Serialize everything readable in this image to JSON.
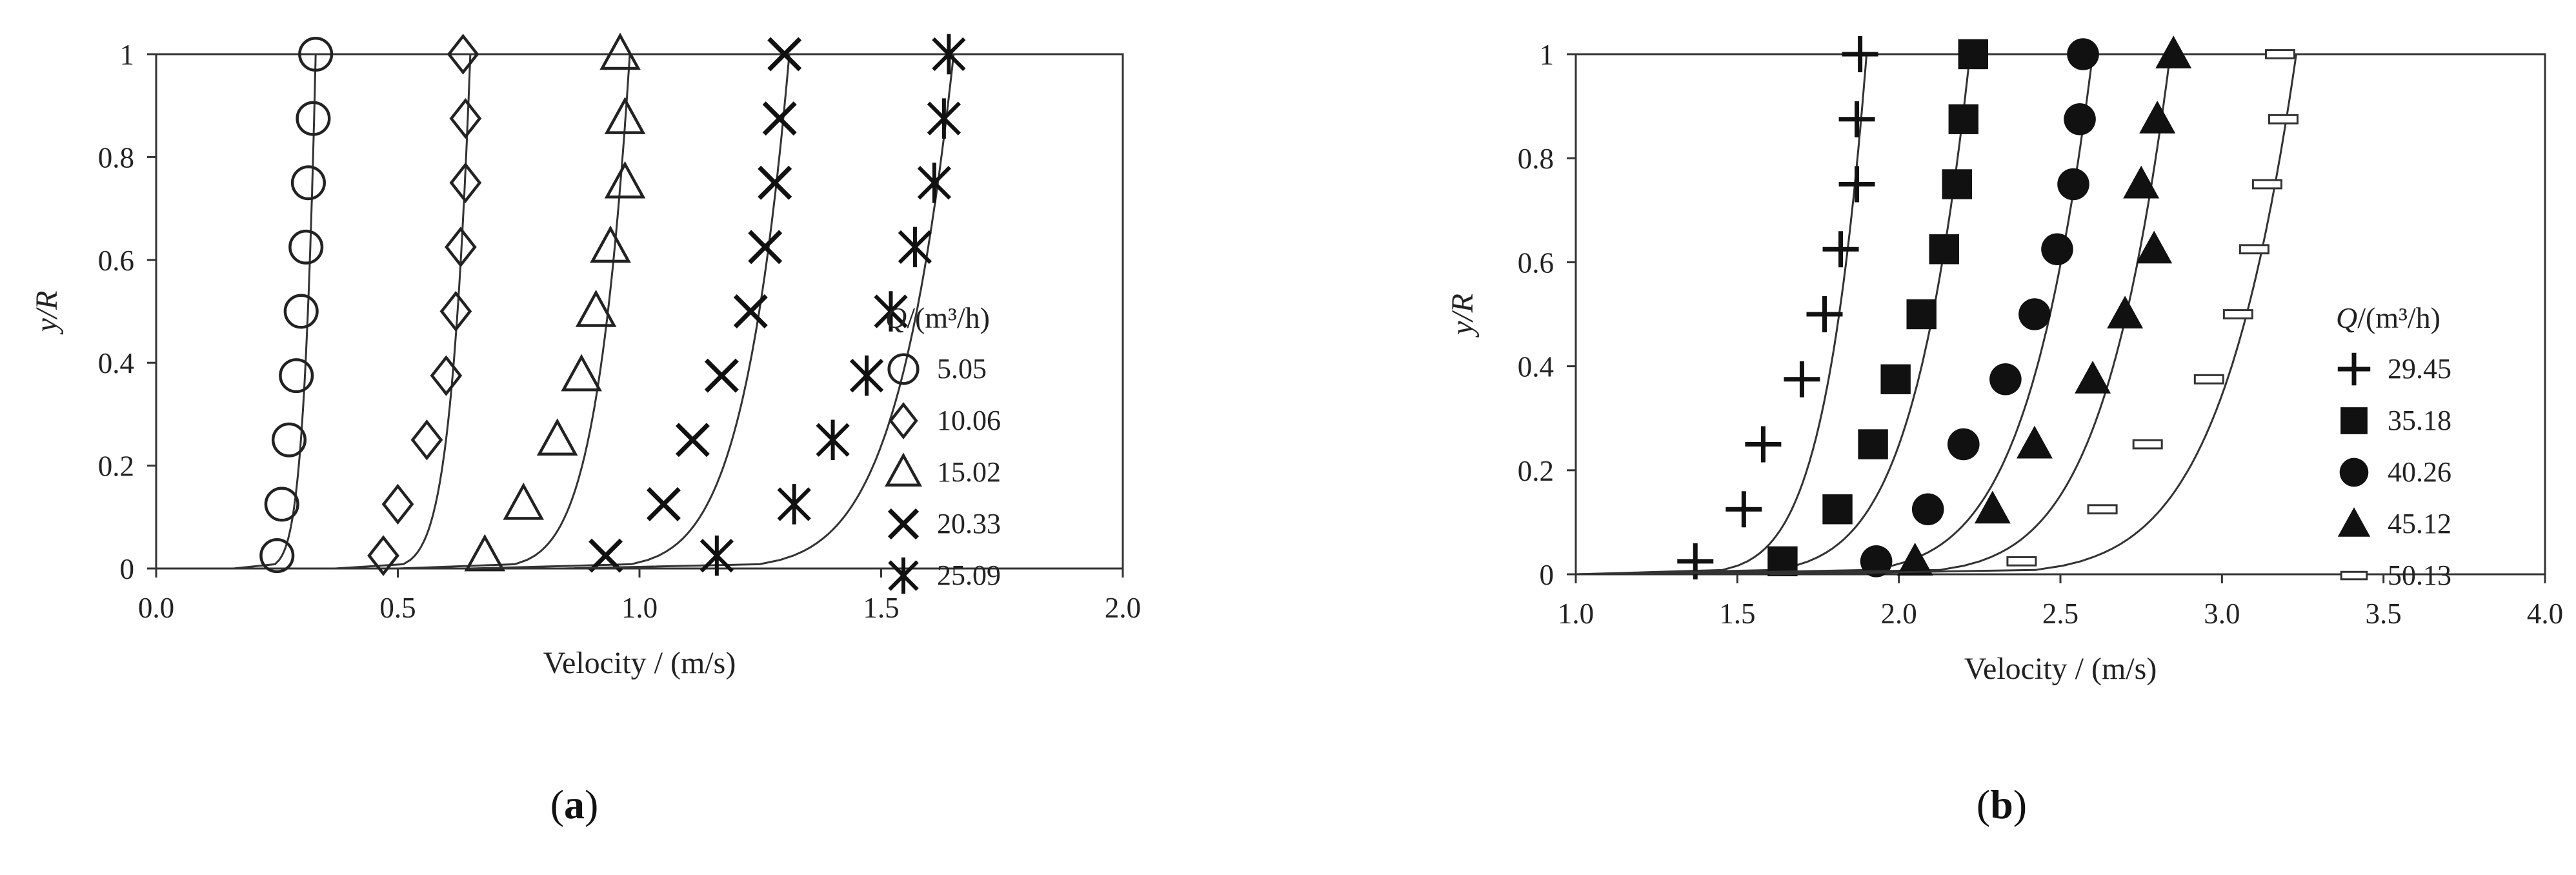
{
  "chart_data": [
    {
      "panel": "(a)",
      "type": "scatter",
      "xlabel": "Velocity / (m/s)",
      "ylabel_italic": "y/R",
      "xlim": [
        0.0,
        2.0
      ],
      "ylim": [
        0,
        1
      ],
      "x_ticks": [
        "0.0",
        "0.5",
        "1.0",
        "1.5",
        "2.0"
      ],
      "y_ticks": [
        "0",
        "0.2",
        "0.4",
        "0.6",
        "0.8",
        "1"
      ],
      "legend_title_italic": "Q",
      "legend_title_rest": "/(m³/h)",
      "legend_position": "right",
      "grid": false,
      "y_values": [
        0.025,
        0.125,
        0.25,
        0.375,
        0.5,
        0.625,
        0.75,
        0.875,
        1.0
      ],
      "series": [
        {
          "name": "5.05",
          "marker": "circle-open",
          "x": [
            0.25,
            0.26,
            0.275,
            0.29,
            0.3,
            0.31,
            0.315,
            0.325,
            0.33
          ],
          "curve": {
            "x0": 0.16,
            "x1": 0.33
          }
        },
        {
          "name": "10.06",
          "marker": "diamond-open",
          "x": [
            0.47,
            0.5,
            0.56,
            0.6,
            0.62,
            0.63,
            0.64,
            0.64,
            0.635
          ],
          "curve": {
            "x0": 0.37,
            "x1": 0.65
          }
        },
        {
          "name": "15.02",
          "marker": "triangle-open",
          "x": [
            0.68,
            0.76,
            0.83,
            0.88,
            0.91,
            0.94,
            0.97,
            0.97,
            0.96
          ],
          "curve": {
            "x0": 0.5,
            "x1": 0.98
          }
        },
        {
          "name": "20.33",
          "marker": "x",
          "x": [
            0.93,
            1.05,
            1.11,
            1.17,
            1.23,
            1.26,
            1.28,
            1.29,
            1.3
          ],
          "curve": {
            "x0": 0.65,
            "x1": 1.31
          }
        },
        {
          "name": "25.09",
          "marker": "asterisk",
          "x": [
            1.16,
            1.32,
            1.4,
            1.47,
            1.52,
            1.57,
            1.61,
            1.63,
            1.64
          ],
          "curve": {
            "x0": 0.84,
            "x1": 1.65
          }
        }
      ]
    },
    {
      "panel": "(b)",
      "type": "scatter",
      "xlabel": "Velocity / (m/s)",
      "ylabel_italic": "y/R",
      "xlim": [
        1.0,
        4.0
      ],
      "ylim": [
        0,
        1
      ],
      "x_ticks": [
        "1.0",
        "1.5",
        "2.0",
        "2.5",
        "3.0",
        "3.5",
        "4.0"
      ],
      "y_ticks": [
        "0",
        "0.2",
        "0.4",
        "0.6",
        "0.8",
        "1"
      ],
      "legend_title_italic": "Q",
      "legend_title_rest": "/(m³/h)",
      "legend_position": "right",
      "grid": false,
      "y_values": [
        0.025,
        0.125,
        0.25,
        0.375,
        0.5,
        0.625,
        0.75,
        0.875,
        1.0
      ],
      "series": [
        {
          "name": "29.45",
          "marker": "plus",
          "x": [
            1.37,
            1.52,
            1.58,
            1.7,
            1.77,
            1.82,
            1.87,
            1.87,
            1.88
          ],
          "curve": {
            "x0": 1.0,
            "x1": 1.9
          }
        },
        {
          "name": "35.18",
          "marker": "square-filled",
          "x": [
            1.64,
            1.81,
            1.92,
            1.99,
            2.07,
            2.14,
            2.18,
            2.2,
            2.23
          ],
          "curve": {
            "x0": 1.0,
            "x1": 2.22
          }
        },
        {
          "name": "40.26",
          "marker": "circle-filled",
          "x": [
            1.93,
            2.09,
            2.2,
            2.33,
            2.42,
            2.49,
            2.54,
            2.56,
            2.57
          ],
          "curve": {
            "x0": 1.2,
            "x1": 2.6
          }
        },
        {
          "name": "45.12",
          "marker": "triangle-filled",
          "x": [
            2.05,
            2.29,
            2.42,
            2.6,
            2.7,
            2.79,
            2.75,
            2.8,
            2.85
          ],
          "curve": {
            "x0": 1.4,
            "x1": 2.84
          }
        },
        {
          "name": "50.13",
          "marker": "dash",
          "x": [
            2.38,
            2.63,
            2.77,
            2.96,
            3.05,
            3.1,
            3.14,
            3.19,
            3.18
          ],
          "curve": {
            "x0": 1.6,
            "x1": 3.23
          }
        }
      ]
    }
  ]
}
